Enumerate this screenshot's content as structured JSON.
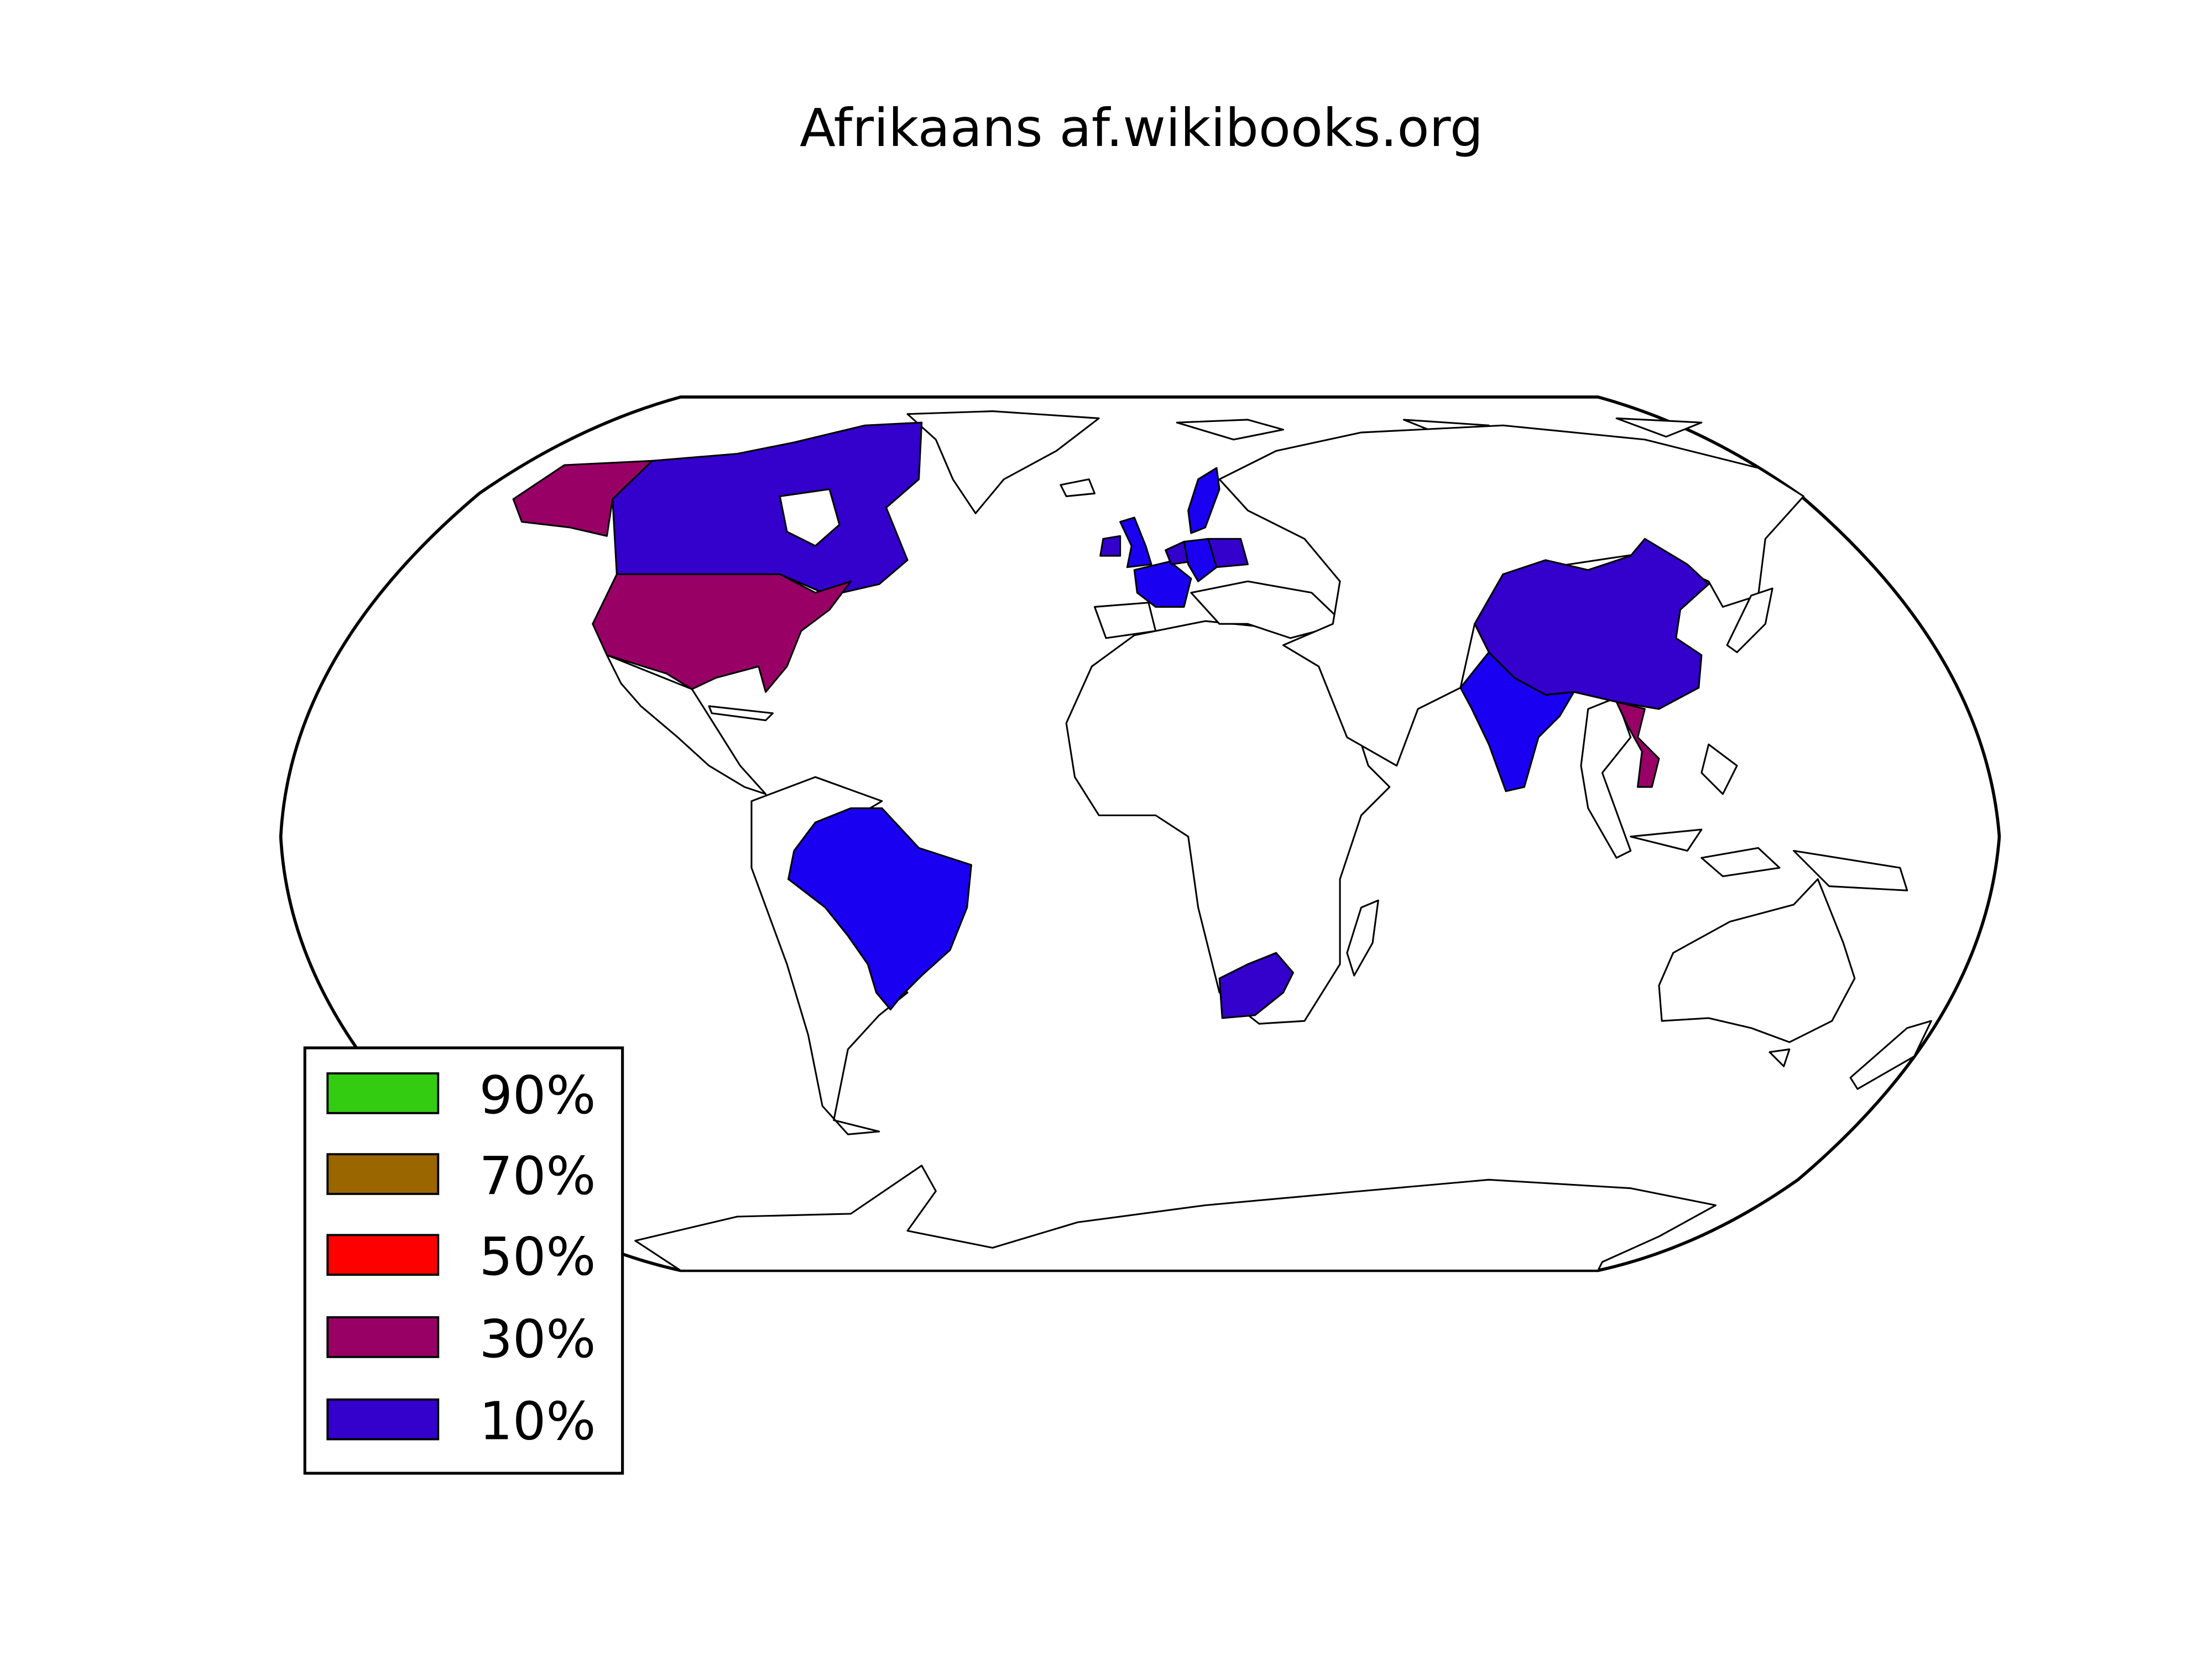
{
  "title": "Afrikaans af.wikibooks.org",
  "colors": {
    "c90": "#33cc11",
    "c70": "#996600",
    "c50": "#ff0000",
    "c30": "#990066",
    "c10": "#3300cc",
    "c10_bright": "#1a00f0",
    "land": "#ffffff",
    "border": "#000000"
  },
  "legend": {
    "placement": "lower-left",
    "items": [
      {
        "label": "90%",
        "color": "#33cc11"
      },
      {
        "label": "70%",
        "color": "#996600"
      },
      {
        "label": "50%",
        "color": "#ff0000"
      },
      {
        "label": "30%",
        "color": "#990066"
      },
      {
        "label": "10%",
        "color": "#3300cc"
      }
    ]
  },
  "countries": {
    "alaska-usa": "30%",
    "usa": "30%",
    "canada": "10%",
    "brazil": "10%",
    "south-africa": "10%",
    "india": "10%",
    "china": "10%",
    "vietnam": "30%",
    "united-kingdom": "10%",
    "ireland": "10%",
    "france": "10%",
    "belgium": "10%",
    "netherlands": "10%",
    "germany": "10%",
    "poland": "10%",
    "sweden": "10%"
  }
}
